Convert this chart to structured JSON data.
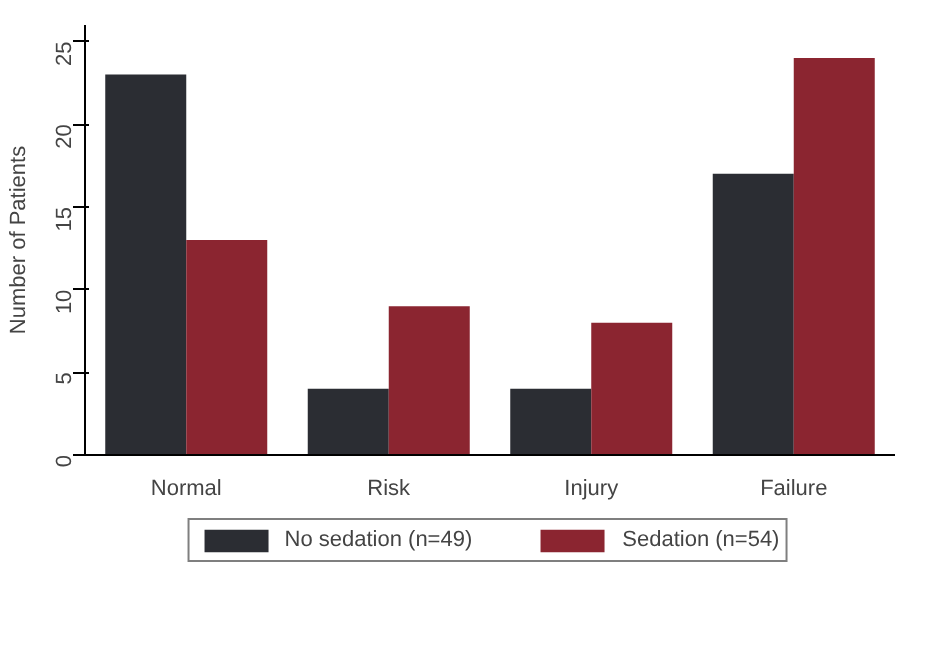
{
  "chart_data": {
    "type": "bar",
    "ylabel": "Number of Patients",
    "categories": [
      "Normal",
      "Risk",
      "Injury",
      "Failure"
    ],
    "series": [
      {
        "name": "No sedation (n=49)",
        "color": "#2b2d33",
        "values": [
          23,
          4,
          4,
          17
        ]
      },
      {
        "name": "Sedation (n=54)",
        "color": "#8b2530",
        "values": [
          13,
          9,
          8,
          24
        ]
      }
    ],
    "ylim": [
      0,
      26
    ],
    "yticks": [
      0,
      5,
      10,
      15,
      20,
      25
    ],
    "grid": false,
    "legend": "bottom"
  }
}
